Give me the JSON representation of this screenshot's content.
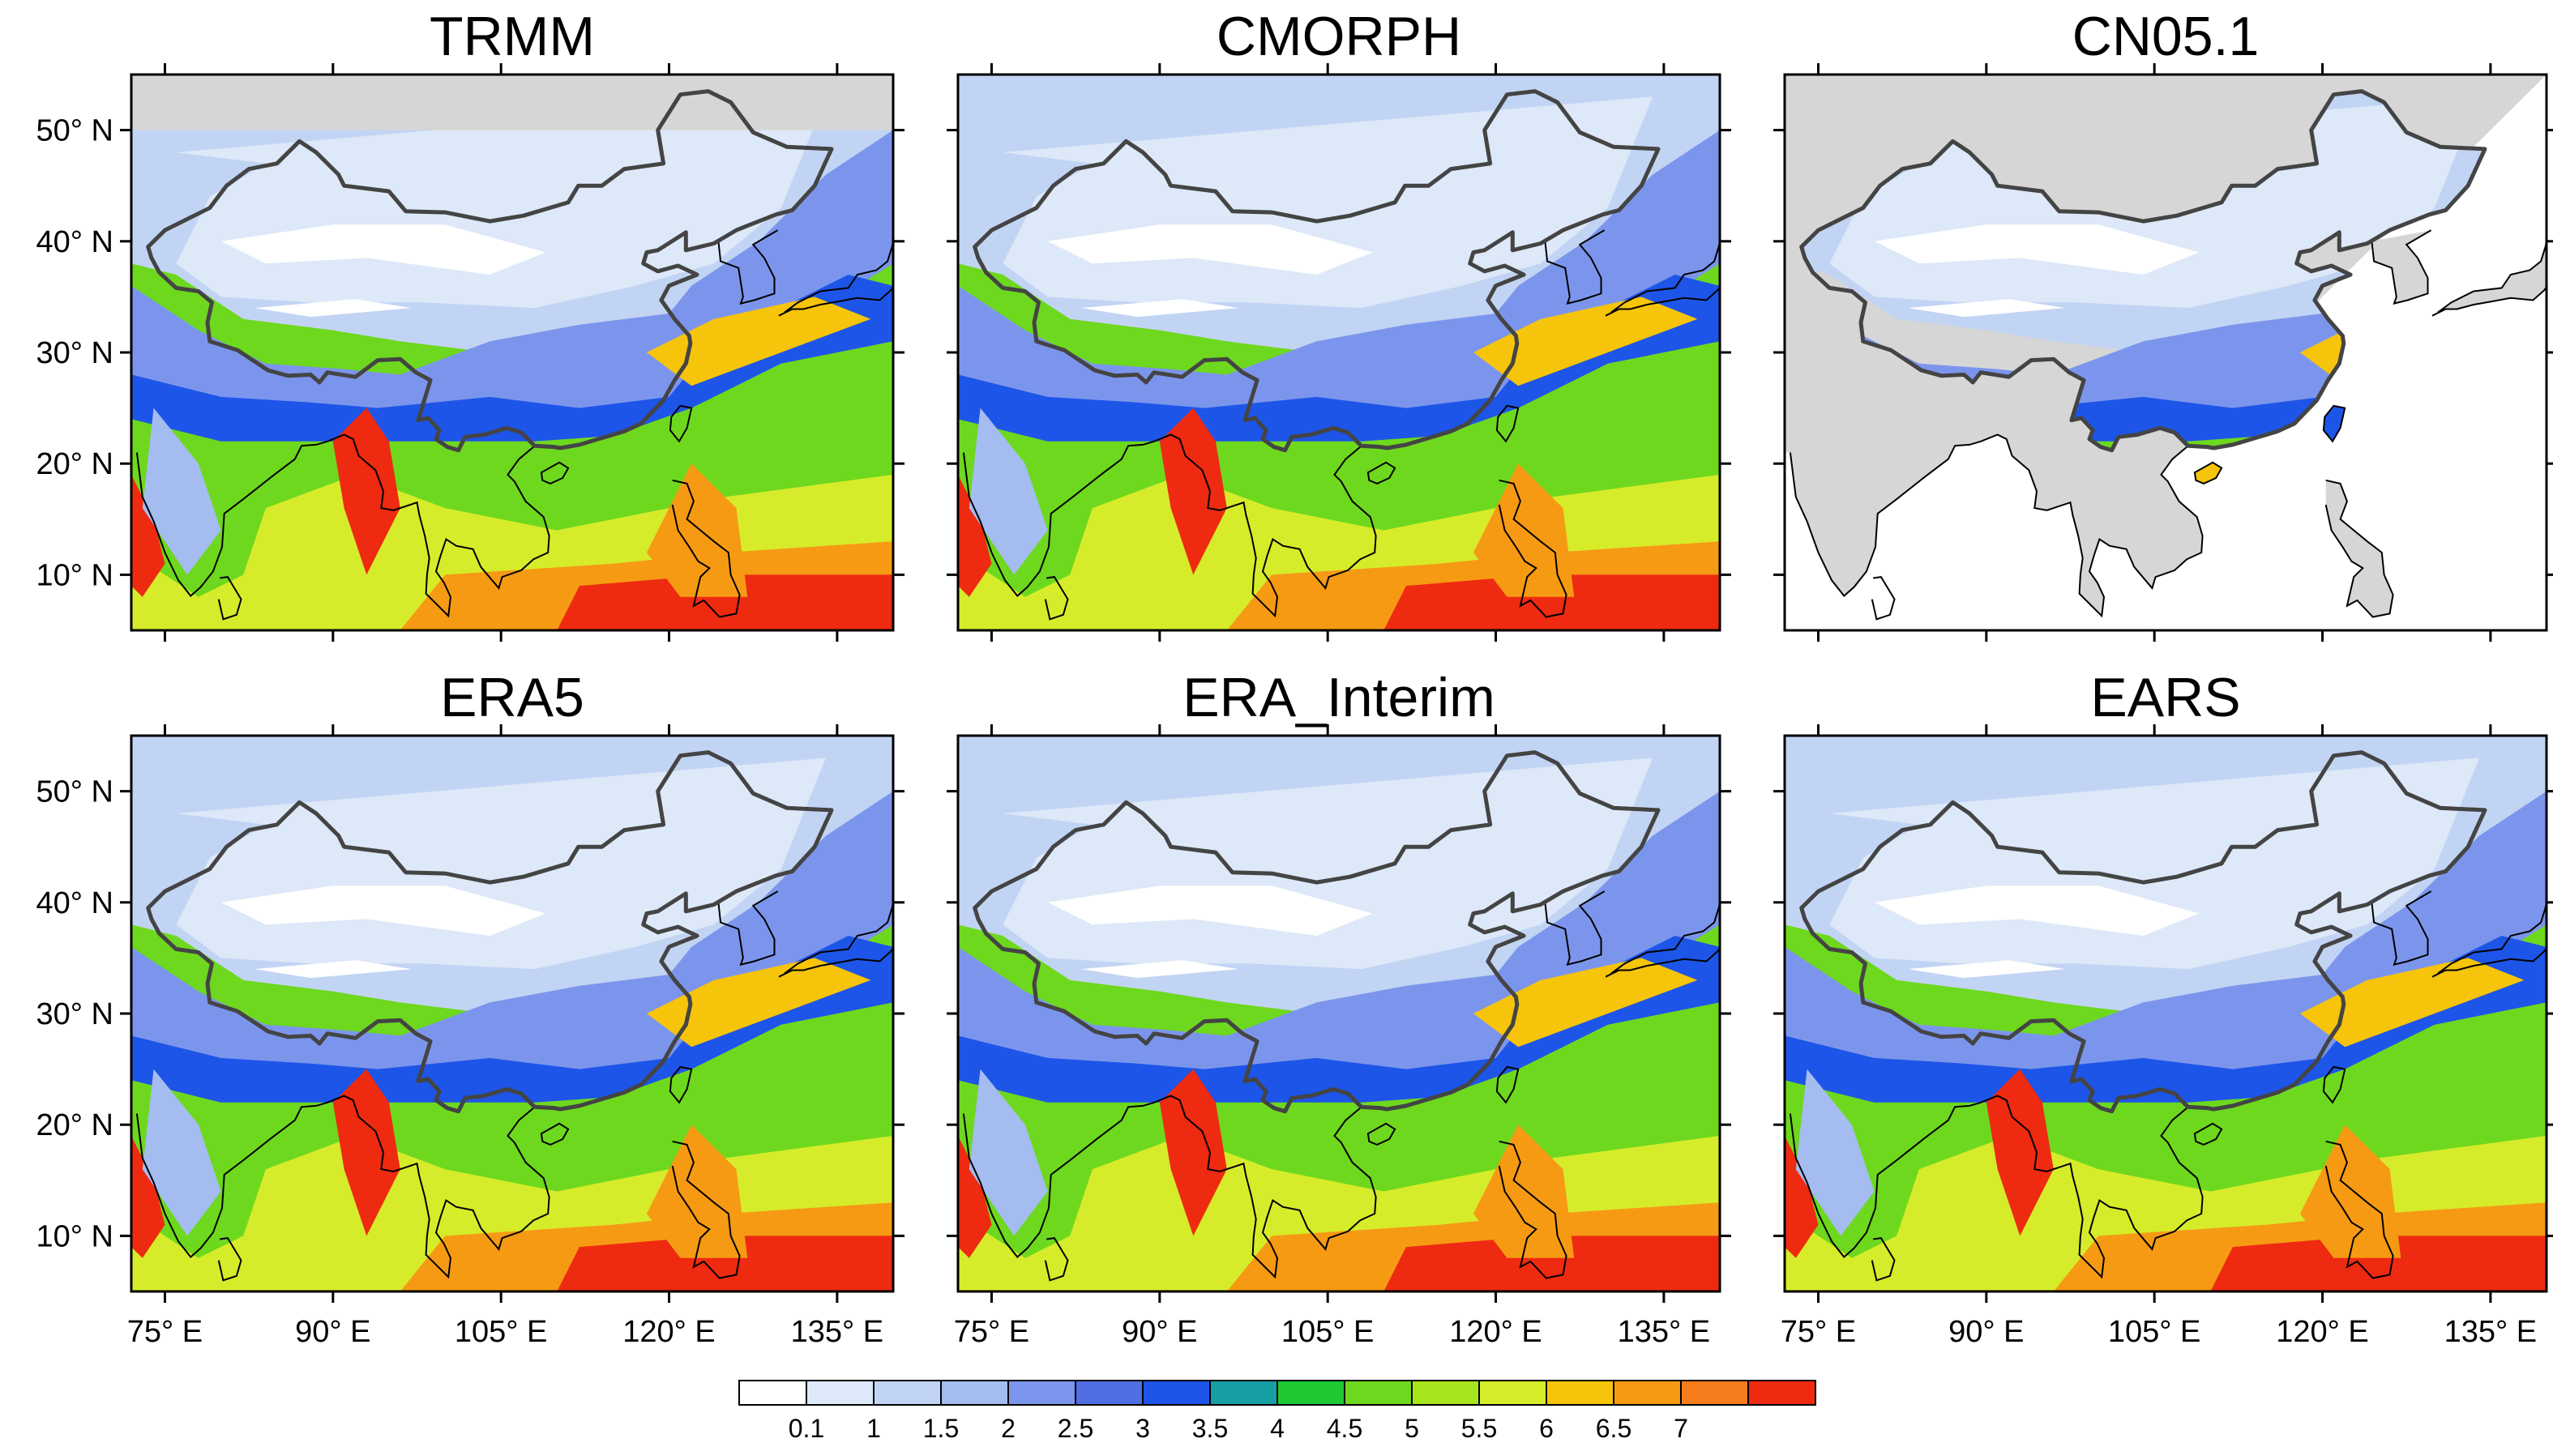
{
  "figure": {
    "panels": [
      {
        "id": "trmm",
        "title": "TRMM",
        "mask": "nodata-north",
        "show_lat_ticks": true,
        "show_lon_ticks": false
      },
      {
        "id": "cmorph",
        "title": "CMORPH",
        "mask": "none",
        "show_lat_ticks": false,
        "show_lon_ticks": false
      },
      {
        "id": "cn051",
        "title": "CN05.1",
        "mask": "china-only",
        "show_lat_ticks": false,
        "show_lon_ticks": false
      },
      {
        "id": "era5",
        "title": "ERA5",
        "mask": "none",
        "show_lat_ticks": true,
        "show_lon_ticks": true
      },
      {
        "id": "era-interim",
        "title": "ERA_Interim",
        "mask": "none",
        "show_lat_ticks": false,
        "show_lon_ticks": true
      },
      {
        "id": "ears",
        "title": "EARS",
        "mask": "none",
        "show_lat_ticks": false,
        "show_lon_ticks": true
      }
    ],
    "lat_ticks": [
      {
        "value": 50,
        "label": "50° N"
      },
      {
        "value": 40,
        "label": "40° N"
      },
      {
        "value": 30,
        "label": "30° N"
      },
      {
        "value": 20,
        "label": "20° N"
      },
      {
        "value": 10,
        "label": "10° N"
      }
    ],
    "lon_ticks": [
      {
        "value": 75,
        "label": "75° E"
      },
      {
        "value": 90,
        "label": "90° E"
      },
      {
        "value": 105,
        "label": "105° E"
      },
      {
        "value": 120,
        "label": "120° E"
      },
      {
        "value": 135,
        "label": "135° E"
      }
    ],
    "lat_range": [
      5,
      55
    ],
    "lon_range": [
      72,
      140
    ],
    "colorbar": {
      "labels": [
        "0.1",
        "1",
        "1.5",
        "2",
        "2.5",
        "3",
        "3.5",
        "4",
        "4.5",
        "5",
        "5.5",
        "6",
        "6.5",
        "7"
      ],
      "colors": [
        "#ffffff",
        "#dde8f8",
        "#c2d4f4",
        "#a4bcf0",
        "#7c95ec",
        "#4f6fe2",
        "#1d55e8",
        "#16a0a6",
        "#1ec832",
        "#6ed81e",
        "#a8e41c",
        "#d6ec2a",
        "#f6c40a",
        "#f69a14",
        "#f67c1c",
        "#ee2a10"
      ]
    },
    "colors": {
      "land_nodata": "#d6d6d6",
      "china_border": "#444444",
      "coastline": "#000000",
      "frame": "#000000"
    }
  }
}
